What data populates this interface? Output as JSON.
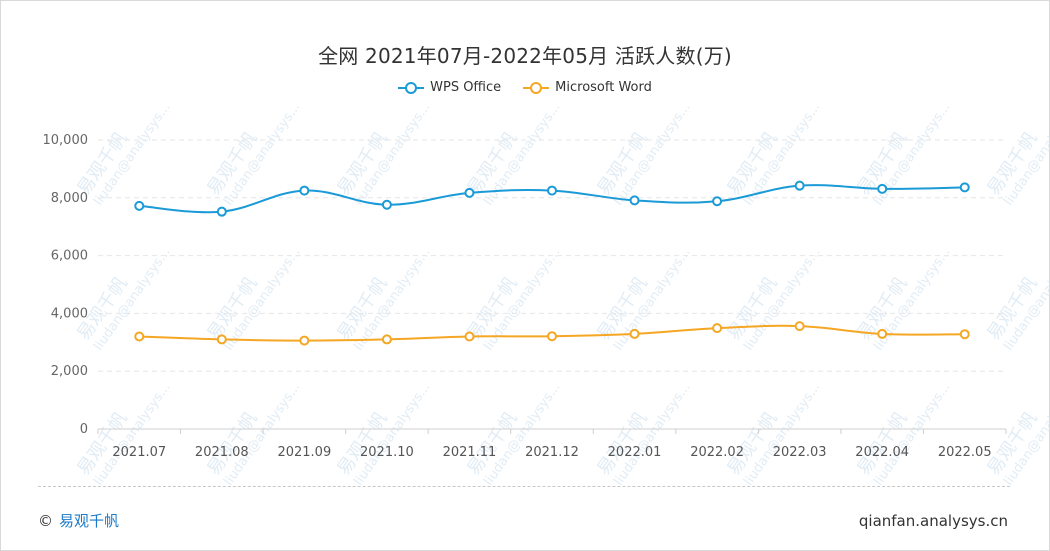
{
  "chart_data": {
    "type": "line",
    "title": "全网 2021年07月-2022年05月 活跃人数(万)",
    "categories": [
      "2021.07",
      "2021.08",
      "2021.09",
      "2021.10",
      "2021.11",
      "2021.12",
      "2022.01",
      "2022.02",
      "2022.03",
      "2022.04",
      "2022.05"
    ],
    "ylim": [
      0,
      10000
    ],
    "yticks": [
      0,
      2000,
      4000,
      6000,
      8000,
      10000
    ],
    "ytick_labels": [
      "0",
      "2,000",
      "4,000",
      "6,000",
      "8,000",
      "10,000"
    ],
    "grid": true,
    "legend_position": "top-center",
    "series": [
      {
        "name": "WPS Office",
        "color": "#1a9ad7",
        "values": [
          7720,
          7520,
          8250,
          7760,
          8170,
          8250,
          7910,
          7880,
          8420,
          8310,
          8360
        ]
      },
      {
        "name": "Microsoft Word",
        "color": "#f5a623",
        "values": [
          3200,
          3100,
          3060,
          3100,
          3200,
          3210,
          3290,
          3490,
          3560,
          3290,
          3280
        ]
      }
    ]
  },
  "watermark": {
    "brand": "易观千帆",
    "text": "liudan@analysys..."
  },
  "footer": {
    "copyright": "©",
    "brand": "易观千帆",
    "site": "qianfan.analysys.cn"
  }
}
